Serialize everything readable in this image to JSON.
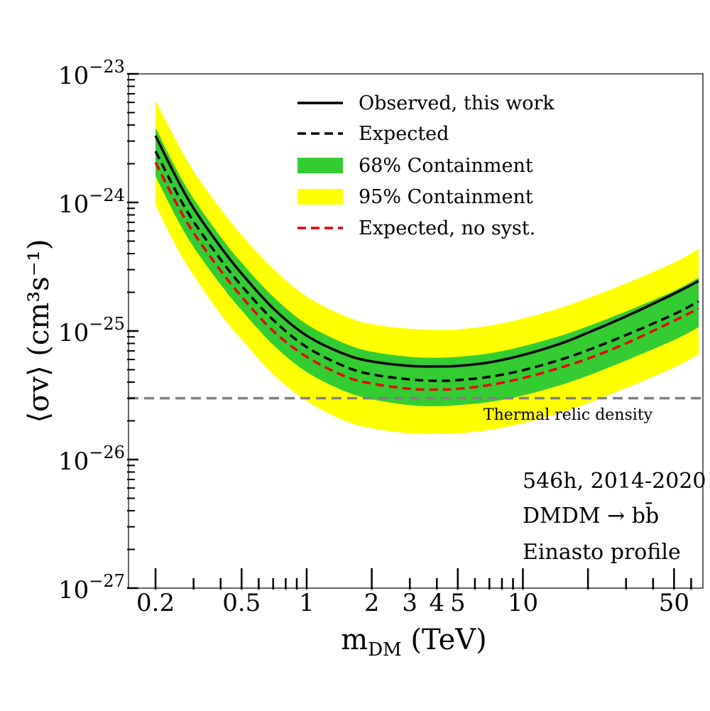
{
  "chart_data": {
    "type": "line",
    "title": "",
    "xlabel": "m_DM (TeV)",
    "ylabel": "⟨σv⟩ (cm³s⁻¹)",
    "xscale": "log",
    "yscale": "log",
    "xlim": [
      0.15,
      68
    ],
    "ylim": [
      1e-27,
      1e-23
    ],
    "x_ticks": [
      {
        "value": 0.2,
        "label": "0.2"
      },
      {
        "value": 0.5,
        "label": "0.5"
      },
      {
        "value": 1,
        "label": "1"
      },
      {
        "value": 2,
        "label": "2"
      },
      {
        "value": 3,
        "label": "3"
      },
      {
        "value": 4,
        "label": "4"
      },
      {
        "value": 5,
        "label": "5"
      },
      {
        "value": 10,
        "label": "10"
      },
      {
        "value": 50,
        "label": "50"
      }
    ],
    "y_ticks": [
      {
        "value": 1e-27,
        "base": "10",
        "exp": "−27"
      },
      {
        "value": 1e-26,
        "base": "10",
        "exp": "−26"
      },
      {
        "value": 1e-25,
        "base": "10",
        "exp": "−25"
      },
      {
        "value": 1e-24,
        "base": "10",
        "exp": "−24"
      },
      {
        "value": 1e-23,
        "base": "10",
        "exp": "−23"
      }
    ],
    "x": [
      0.2,
      0.25,
      0.3,
      0.4,
      0.5,
      0.7,
      1,
      1.5,
      2,
      3,
      4,
      5,
      7,
      10,
      15,
      20,
      30,
      50,
      65
    ],
    "series": [
      {
        "name": "Observed, this work",
        "style": "solid",
        "color": "#000000",
        "values": [
          3.3e-24,
          1.55e-24,
          9e-25,
          4.5e-25,
          2.8e-25,
          1.5e-25,
          9.2e-26,
          6.6e-26,
          5.8e-26,
          5.35e-26,
          5.3e-26,
          5.35e-26,
          5.7e-26,
          6.5e-26,
          8e-26,
          9.7e-26,
          1.3e-25,
          1.95e-25,
          2.45e-25
        ]
      },
      {
        "name": "Expected",
        "style": "dashed",
        "color": "#000000",
        "values": [
          2.5e-24,
          1.2e-24,
          7.1e-25,
          3.6e-25,
          2.25e-25,
          1.22e-25,
          7.5e-26,
          5.3e-26,
          4.6e-26,
          4.2e-26,
          4.1e-26,
          4.15e-26,
          4.4e-26,
          4.95e-26,
          6e-26,
          7.1e-26,
          9.3e-26,
          1.35e-25,
          1.7e-25
        ]
      },
      {
        "name": "Expected, no syst.",
        "style": "dashed",
        "color": "#e8000b",
        "values": [
          2.05e-24,
          9.8e-25,
          5.8e-25,
          2.95e-25,
          1.85e-25,
          1e-25,
          6.3e-26,
          4.45e-26,
          3.9e-26,
          3.55e-26,
          3.5e-26,
          3.55e-26,
          3.8e-26,
          4.3e-26,
          5.2e-26,
          6.1e-26,
          8e-26,
          1.2e-25,
          1.5e-25
        ]
      },
      {
        "name": "68% Containment",
        "style": "band",
        "color": "#33cc33",
        "lower": [
          1.6e-24,
          7.6e-25,
          4.5e-25,
          2.3e-25,
          1.45e-25,
          7.8e-26,
          4.8e-26,
          3.4e-26,
          2.95e-26,
          2.65e-26,
          2.6e-26,
          2.65e-26,
          2.8e-26,
          3.15e-26,
          3.8e-26,
          4.5e-26,
          5.9e-26,
          8.5e-26,
          1.07e-25
        ],
        "upper": [
          3.8e-24,
          1.8e-24,
          1.07e-24,
          5.4e-25,
          3.4e-25,
          1.85e-25,
          1.13e-25,
          8e-26,
          6.9e-26,
          6.3e-26,
          6.2e-26,
          6.3e-26,
          6.7e-26,
          7.6e-26,
          9.2e-26,
          1.09e-25,
          1.42e-25,
          2.05e-25,
          2.6e-25
        ]
      },
      {
        "name": "95% Containment",
        "style": "band",
        "color": "#ffff00",
        "lower": [
          9.5e-25,
          4.5e-25,
          2.7e-25,
          1.35e-25,
          8.6e-26,
          4.6e-26,
          2.85e-26,
          2e-26,
          1.75e-26,
          1.6e-26,
          1.58e-26,
          1.6e-26,
          1.7e-26,
          1.92e-26,
          2.32e-26,
          2.75e-26,
          3.6e-26,
          5.2e-26,
          6.6e-26
        ],
        "upper": [
          6.2e-24,
          3e-24,
          1.75e-24,
          8.9e-25,
          5.6e-25,
          3.05e-25,
          1.86e-25,
          1.31e-25,
          1.13e-25,
          1.04e-25,
          1.02e-25,
          1.03e-25,
          1.1e-25,
          1.25e-25,
          1.52e-25,
          1.8e-25,
          2.35e-25,
          3.4e-25,
          4.35e-25
        ]
      }
    ],
    "reference_line": {
      "name": "Thermal relic density",
      "value": 3e-26,
      "style": "dashed",
      "color": "#808080"
    },
    "legend": {
      "position": "top-center",
      "entries": [
        {
          "label": "Observed, this work",
          "kind": "solid-line",
          "color": "#000000"
        },
        {
          "label": "Expected",
          "kind": "dashed-line",
          "color": "#000000"
        },
        {
          "label": "68% Containment",
          "kind": "patch",
          "color": "#33cc33"
        },
        {
          "label": "95% Containment",
          "kind": "patch",
          "color": "#ffff00"
        },
        {
          "label": "Expected, no syst.",
          "kind": "dashed-line",
          "color": "#e8000b"
        }
      ]
    },
    "annotations": {
      "exposure": "546h, 2014-2020",
      "channel": "DMDM → bb̄",
      "profile": "Einasto profile"
    },
    "grid": false
  }
}
